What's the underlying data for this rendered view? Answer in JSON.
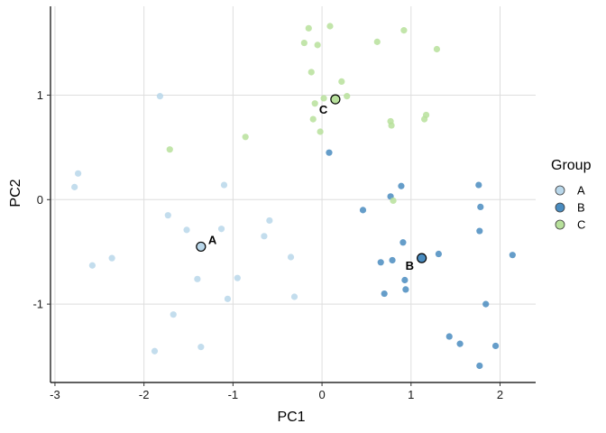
{
  "chart_data": {
    "type": "scatter",
    "xlabel": "PC1",
    "ylabel": "PC2",
    "xlim": [
      -3.05,
      2.4
    ],
    "ylim": [
      -1.75,
      1.85
    ],
    "x_ticks": [
      -3,
      -2,
      -1,
      0,
      1,
      2
    ],
    "y_ticks": [
      -1,
      0,
      1
    ],
    "x_tick_labels": [
      "-3",
      "-2",
      "-1",
      "0",
      "1",
      "2"
    ],
    "y_tick_labels": [
      "-1",
      "0",
      "1"
    ],
    "grid": true,
    "legend": {
      "title": "Group",
      "position": "right"
    },
    "series": [
      {
        "name": "A",
        "color": "#b9d7ea",
        "points": [
          [
            -2.78,
            0.12
          ],
          [
            -2.74,
            0.25
          ],
          [
            -2.58,
            -0.63
          ],
          [
            -2.36,
            -0.56
          ],
          [
            -1.82,
            0.99
          ],
          [
            -1.88,
            -1.45
          ],
          [
            -1.73,
            -0.15
          ],
          [
            -1.67,
            -1.1
          ],
          [
            -1.52,
            -0.29
          ],
          [
            -1.4,
            -0.76
          ],
          [
            -1.36,
            -1.41
          ],
          [
            -1.13,
            -0.28
          ],
          [
            -1.1,
            0.14
          ],
          [
            -1.06,
            -0.95
          ],
          [
            -0.95,
            -0.75
          ],
          [
            -0.65,
            -0.35
          ],
          [
            -0.59,
            -0.2
          ],
          [
            -0.35,
            -0.55
          ],
          [
            -0.31,
            -0.93
          ],
          [
            -1.36,
            -0.45
          ]
        ]
      },
      {
        "name": "B",
        "color": "#4a8cc0",
        "points": [
          [
            0.08,
            0.45
          ],
          [
            0.46,
            -0.1
          ],
          [
            0.66,
            -0.6
          ],
          [
            0.7,
            -0.9
          ],
          [
            0.77,
            0.03
          ],
          [
            0.79,
            -0.58
          ],
          [
            0.89,
            0.13
          ],
          [
            0.91,
            -0.41
          ],
          [
            0.93,
            -0.77
          ],
          [
            0.94,
            -0.86
          ],
          [
            1.12,
            -0.56
          ],
          [
            1.31,
            -0.52
          ],
          [
            1.43,
            -1.31
          ],
          [
            1.55,
            -1.38
          ],
          [
            1.76,
            0.14
          ],
          [
            1.77,
            -0.3
          ],
          [
            1.77,
            -1.59
          ],
          [
            1.78,
            -0.07
          ],
          [
            1.84,
            -1.0
          ],
          [
            1.95,
            -1.4
          ],
          [
            2.14,
            -0.53
          ]
        ]
      },
      {
        "name": "C",
        "color": "#b7e09b",
        "points": [
          [
            -0.2,
            1.5
          ],
          [
            -0.15,
            1.64
          ],
          [
            -0.12,
            1.22
          ],
          [
            -0.1,
            0.77
          ],
          [
            -0.08,
            0.92
          ],
          [
            -0.05,
            1.48
          ],
          [
            -0.02,
            0.65
          ],
          [
            0.02,
            0.97
          ],
          [
            0.09,
            1.66
          ],
          [
            0.22,
            1.13
          ],
          [
            0.28,
            0.99
          ],
          [
            0.62,
            1.51
          ],
          [
            0.77,
            0.75
          ],
          [
            0.78,
            0.71
          ],
          [
            0.8,
            -0.01
          ],
          [
            0.92,
            1.62
          ],
          [
            1.15,
            0.77
          ],
          [
            1.17,
            0.81
          ],
          [
            1.29,
            1.44
          ],
          [
            -1.71,
            0.48
          ],
          [
            -0.86,
            0.6
          ],
          [
            0.15,
            0.96
          ]
        ]
      }
    ],
    "annotations": [
      {
        "label": "A",
        "x": -1.36,
        "y": -0.45,
        "color": "#b9d7ea"
      },
      {
        "label": "B",
        "x": 1.12,
        "y": -0.56,
        "color": "#4a8cc0"
      },
      {
        "label": "C",
        "x": 0.15,
        "y": 0.96,
        "color": "#b7e09b"
      }
    ]
  }
}
